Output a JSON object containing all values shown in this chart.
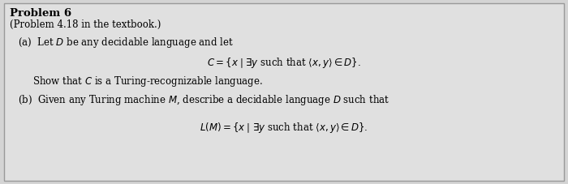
{
  "bg_color": "#d4d4d4",
  "box_color": "#e0e0e0",
  "border_color": "#999999",
  "title_bold": "Problem 6",
  "line1": "(Problem 4.18 in the textbook.)",
  "line_a_text": "(a)  Let $D$ be any decidable language and let",
  "line_a_formula": "$C = \\{x \\mid \\exists y$ such that $\\langle x, y\\rangle \\in D\\}.$",
  "line_a_show": "Show that $C$ is a Turing-recognizable language.",
  "line_b_text": "(b)  Given any Turing machine $M$, describe a decidable language $D$ such that",
  "line_b_formula": "$L(M) = \\{x \\mid \\exists y$ such that $\\langle x, y\\rangle \\in D\\}.$",
  "figsize": [
    7.0,
    2.27
  ],
  "dpi": 100
}
